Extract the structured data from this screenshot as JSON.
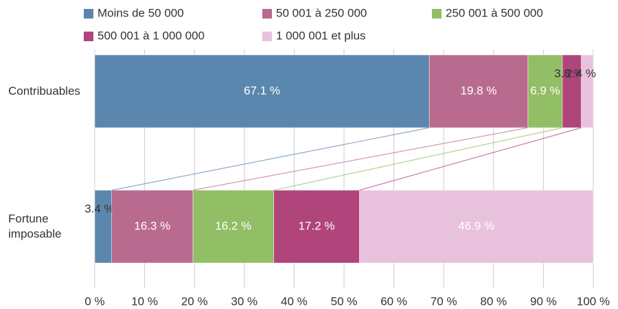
{
  "chart_data": {
    "type": "stacked-bar-horizontal",
    "categories": [
      "Contribuables",
      "Fortune imposable"
    ],
    "series": [
      {
        "name": "Moins de 50 000",
        "color": "#5b87ae",
        "values": [
          67.1,
          3.4
        ],
        "value_labels": [
          "67.1 %",
          "3.4 %"
        ]
      },
      {
        "name": "50 001 à 250 000",
        "color": "#b96b8f",
        "values": [
          19.8,
          16.3
        ],
        "value_labels": [
          "19.8 %",
          "16.3 %"
        ]
      },
      {
        "name": "250 001 à 500 000",
        "color": "#92be66",
        "values": [
          6.9,
          16.2
        ],
        "value_labels": [
          "6.9 %",
          "16.2 %"
        ]
      },
      {
        "name": "500 001 à 1 000 000",
        "color": "#b0457b",
        "values": [
          3.8,
          17.2
        ],
        "value_labels": [
          "3.8 %",
          "17.2 %"
        ]
      },
      {
        "name": "1 000 001 et plus",
        "color": "#e8c2dd",
        "values": [
          2.4,
          46.9
        ],
        "value_labels": [
          "2.4 %",
          "46.9 %"
        ]
      }
    ],
    "xlim": [
      0,
      100
    ],
    "xticks": [
      {
        "value": 0,
        "label": "0 %"
      },
      {
        "value": 10,
        "label": "10 %"
      },
      {
        "value": 20,
        "label": "20 %"
      },
      {
        "value": 30,
        "label": "30 %"
      },
      {
        "value": 40,
        "label": "40 %"
      },
      {
        "value": 50,
        "label": "50 %"
      },
      {
        "value": 60,
        "label": "60 %"
      },
      {
        "value": 70,
        "label": "70 %"
      },
      {
        "value": 80,
        "label": "80 %"
      },
      {
        "value": 90,
        "label": "90 %"
      },
      {
        "value": 100,
        "label": "100 %"
      }
    ],
    "grid": true,
    "legend": "top"
  }
}
